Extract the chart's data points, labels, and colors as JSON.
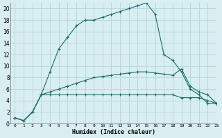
{
  "xlabel": "Humidex (Indice chaleur)",
  "x": [
    0,
    1,
    2,
    3,
    4,
    5,
    6,
    7,
    8,
    9,
    10,
    11,
    12,
    13,
    14,
    15,
    16,
    17,
    18,
    19,
    20,
    21,
    22,
    23
  ],
  "line1": [
    1,
    0.5,
    2,
    5,
    5,
    5,
    5,
    5,
    5,
    5,
    5,
    5,
    5,
    5,
    5,
    5,
    5,
    5,
    5,
    4.5,
    4.5,
    4.5,
    4,
    3.5
  ],
  "line2": [
    1,
    0.5,
    2,
    5,
    5.5,
    6,
    6.5,
    7,
    7.5,
    8,
    8.2,
    8.4,
    8.6,
    8.8,
    9.0,
    9.0,
    8.8,
    8.6,
    8.4,
    9.5,
    6.5,
    5.5,
    5,
    3.5
  ],
  "line3": [
    1,
    0.5,
    2,
    5,
    9,
    13,
    15,
    17,
    18,
    18,
    18.5,
    19,
    19.5,
    20,
    20.5,
    21,
    19,
    12,
    11,
    9,
    6,
    5,
    3.5,
    3.5
  ],
  "bg_color": "#d8eef0",
  "grid_color": "#b8d8dc",
  "line_color": "#1a6b6b",
  "xlim": [
    -0.5,
    23
  ],
  "ylim": [
    0,
    21
  ],
  "yticks": [
    0,
    2,
    4,
    6,
    8,
    10,
    12,
    14,
    16,
    18,
    20
  ],
  "xticks": [
    0,
    1,
    2,
    3,
    4,
    5,
    6,
    7,
    8,
    9,
    10,
    11,
    12,
    13,
    14,
    15,
    16,
    17,
    18,
    19,
    20,
    21,
    22,
    23
  ]
}
